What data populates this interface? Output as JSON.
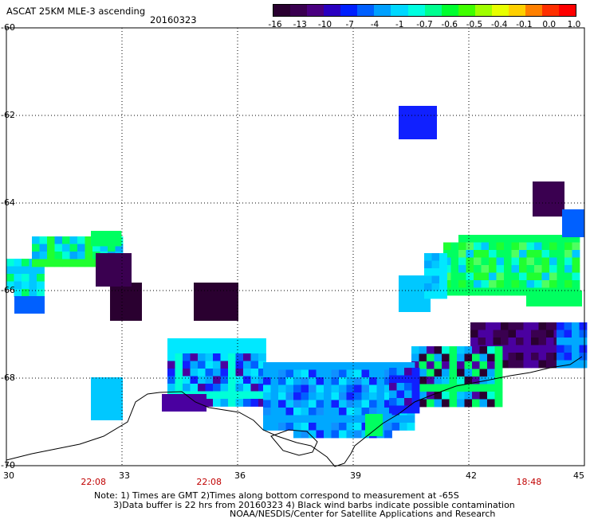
{
  "header": {
    "title": "ASCAT 25KM MLE-3 ascending",
    "date": "20160323"
  },
  "colorbar": {
    "labels": [
      "-16",
      "-13",
      "-10",
      "-7",
      "-4",
      "-1",
      "-0.7",
      "-0.6",
      "-0.5",
      "-0.4",
      "-0.1",
      "0.0",
      "1.0"
    ],
    "colors": [
      "#2a0030",
      "#3a0050",
      "#4a0080",
      "#2a00c0",
      "#0020ff",
      "#0060ff",
      "#00a0ff",
      "#00d8ff",
      "#00ffe0",
      "#00ff90",
      "#00ff30",
      "#40ff00",
      "#a0ff00",
      "#e8ff00",
      "#ffd000",
      "#ff8000",
      "#ff3000",
      "#ff0000"
    ]
  },
  "map": {
    "lon_min": 30,
    "lon_max": 45,
    "lat_top": -60,
    "lat_bottom": -70,
    "lon_ticks": [
      "30",
      "33",
      "36",
      "39",
      "42",
      "45"
    ],
    "lat_ticks": [
      "-60",
      "-62",
      "-64",
      "-66",
      "-68",
      "-70"
    ],
    "time_labels": [
      {
        "lon": 32.2,
        "text": "22:08"
      },
      {
        "lon": 35.2,
        "text": "22:08"
      },
      {
        "lon": 43.5,
        "text": "18:48"
      }
    ]
  },
  "footer": {
    "line1": "Note: 1) Times are GMT 2)Times along bottom correspond to measurement at -65S",
    "line2": "3)Data buffer is 22 hrs from 20160323 4) Black wind barbs indicate possible contamination",
    "line3": "NOAA/NESDIS/Center for Satellite Applications and Research"
  }
}
